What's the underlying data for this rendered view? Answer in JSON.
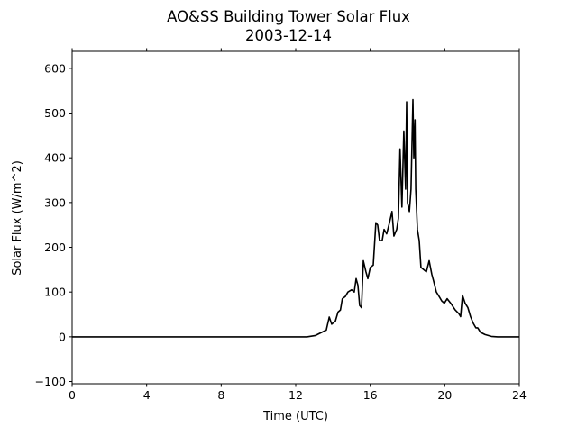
{
  "chart_data": {
    "type": "line",
    "title": "AO&SS Building Tower Solar Flux",
    "subtitle": "2003-12-14",
    "xlabel": "Time (UTC)",
    "ylabel": "Solar Flux (W/m^2)",
    "xlim": [
      0,
      24
    ],
    "ylim": [
      -105,
      638
    ],
    "xticks": [
      0,
      4,
      8,
      12,
      16,
      20,
      24
    ],
    "xtick_labels": [
      "0",
      "4",
      "8",
      "12",
      "16",
      "20",
      "24"
    ],
    "yticks": [
      -100,
      0,
      100,
      200,
      300,
      400,
      500,
      600
    ],
    "ytick_labels": [
      "−100",
      "0",
      "100",
      "200",
      "300",
      "400",
      "500",
      "600"
    ],
    "grid": false,
    "series": [
      {
        "name": "Solar Flux",
        "color": "#000000",
        "x": [
          0,
          12.6,
          13.06,
          13.4,
          13.64,
          13.8,
          13.93,
          14.13,
          14.27,
          14.4,
          14.5,
          14.66,
          14.8,
          15.0,
          15.14,
          15.24,
          15.34,
          15.43,
          15.53,
          15.63,
          15.77,
          15.87,
          16.0,
          16.16,
          16.3,
          16.4,
          16.5,
          16.64,
          16.74,
          16.88,
          17.03,
          17.17,
          17.27,
          17.42,
          17.51,
          17.6,
          17.7,
          17.8,
          17.9,
          17.95,
          18.0,
          18.1,
          18.19,
          18.29,
          18.34,
          18.4,
          18.44,
          18.53,
          18.63,
          18.72,
          18.87,
          19.01,
          19.16,
          19.3,
          19.4,
          19.55,
          19.7,
          19.84,
          19.98,
          20.13,
          20.32,
          20.56,
          20.75,
          20.85,
          20.95,
          21.09,
          21.24,
          21.38,
          21.53,
          21.67,
          21.77,
          21.92,
          22.16,
          22.5,
          22.84,
          24
        ],
        "y": [
          0,
          0,
          3,
          10,
          15,
          44,
          28,
          35,
          55,
          60,
          85,
          90,
          100,
          105,
          100,
          130,
          115,
          70,
          65,
          170,
          145,
          130,
          155,
          160,
          255,
          250,
          215,
          215,
          240,
          230,
          255,
          280,
          225,
          240,
          265,
          420,
          290,
          460,
          330,
          525,
          300,
          280,
          330,
          530,
          400,
          485,
          330,
          240,
          215,
          155,
          150,
          145,
          170,
          140,
          125,
          100,
          90,
          80,
          75,
          85,
          75,
          60,
          52,
          45,
          93,
          75,
          65,
          45,
          30,
          20,
          20,
          10,
          5,
          1,
          0,
          0
        ]
      }
    ]
  }
}
